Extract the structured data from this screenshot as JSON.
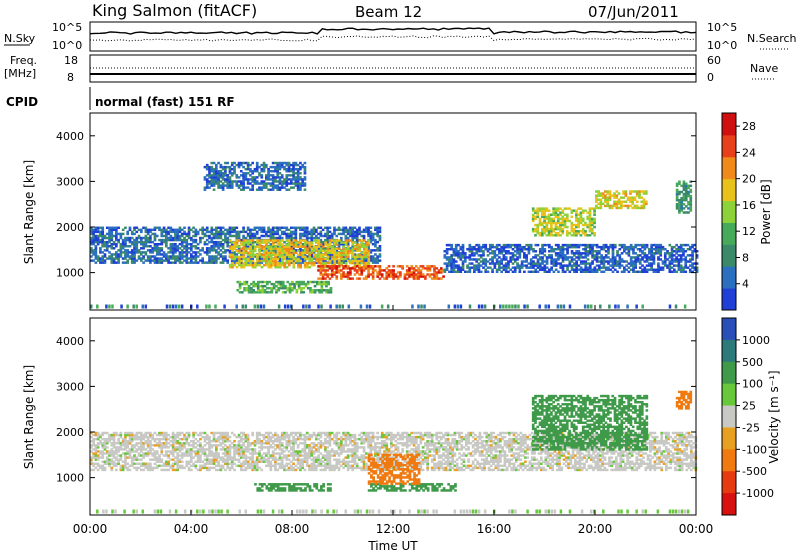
{
  "header": {
    "station": "King Salmon (fitACF)",
    "beam": "Beam 12",
    "date": "07/Jun/2011"
  },
  "strip_panels": {
    "nsky_label": "N.Sky",
    "nsky_ticks": [
      "10^5",
      "10^0"
    ],
    "nsearch_label": "N.Search",
    "nsearch_ticks": [
      "10^5",
      "10^0"
    ],
    "freq_label": "Freq.",
    "freq_unit": "[MHz]",
    "freq_ticks": [
      "18",
      "8"
    ],
    "nave_label": "Nave",
    "nave_ticks": [
      "60",
      "0"
    ],
    "cpid_label": "CPID",
    "cpid_value": "normal (fast) 151 RF"
  },
  "x_axis": {
    "label": "Time UT",
    "ticks": [
      "00:00",
      "04:00",
      "08:00",
      "12:00",
      "16:00",
      "20:00",
      "00:00"
    ]
  },
  "colors": {
    "power": [
      "#1f3fd6",
      "#2b6fc0",
      "#3a8a6a",
      "#47a95a",
      "#8ed23a",
      "#e8c21a",
      "#f08a1a",
      "#e8401a",
      "#d01010"
    ],
    "velocity": [
      "#2a4fb8",
      "#2d7a7a",
      "#3f9a4a",
      "#66c83a",
      "#c8c8c4",
      "#e8a020",
      "#f07a10",
      "#e63a10",
      "#d81010"
    ]
  },
  "chart_data": [
    {
      "type": "heatmap",
      "title": "",
      "xlabel": "Time UT",
      "ylabel": "Slant Range [km]",
      "xlim": [
        0,
        24
      ],
      "ylim": [
        180,
        4500
      ],
      "yticks": [
        "1000",
        "2000",
        "3000",
        "4000"
      ],
      "colorbar": {
        "label": "Power [dB]",
        "ticks": [
          "4",
          "8",
          "12",
          "16",
          "20",
          "24",
          "28"
        ],
        "range": [
          0,
          30
        ]
      },
      "features": [
        {
          "t0": 0.0,
          "t1": 11.5,
          "r0": 1200,
          "r1": 2000,
          "level": 5
        },
        {
          "t0": 5.5,
          "t1": 11.0,
          "r0": 1100,
          "r1": 1700,
          "level": 18
        },
        {
          "t0": 9.0,
          "t1": 14.0,
          "r0": 850,
          "r1": 1150,
          "level": 24
        },
        {
          "t0": 5.8,
          "t1": 9.5,
          "r0": 550,
          "r1": 800,
          "level": 12
        },
        {
          "t0": 4.5,
          "t1": 8.5,
          "r0": 2800,
          "r1": 3400,
          "level": 5
        },
        {
          "t0": 17.5,
          "t1": 20.0,
          "r0": 1800,
          "r1": 2400,
          "level": 16
        },
        {
          "t0": 20.0,
          "t1": 22.0,
          "r0": 2400,
          "r1": 2800,
          "level": 18
        },
        {
          "t0": 14.0,
          "t1": 24.0,
          "r0": 1000,
          "r1": 1600,
          "level": 4
        },
        {
          "t0": 23.2,
          "t1": 23.8,
          "r0": 2300,
          "r1": 3000,
          "level": 10
        }
      ]
    },
    {
      "type": "heatmap",
      "title": "",
      "xlabel": "Time UT",
      "ylabel": "Slant Range [km]",
      "xlim": [
        0,
        24
      ],
      "ylim": [
        180,
        4500
      ],
      "yticks": [
        "1000",
        "2000",
        "3000",
        "4000"
      ],
      "colorbar": {
        "label": "Velocity [m s⁻¹]",
        "ticks": [
          "1000",
          "500",
          "100",
          "25",
          "-25",
          "-100",
          "-500",
          "-1000"
        ],
        "range": [
          -1200,
          1200
        ]
      },
      "features": [
        {
          "t0": 0.0,
          "t1": 24.0,
          "r0": 1150,
          "r1": 2000,
          "velocity": 0
        },
        {
          "t0": 6.5,
          "t1": 9.5,
          "r0": 700,
          "r1": 850,
          "velocity": 150
        },
        {
          "t0": 11.0,
          "t1": 14.5,
          "r0": 700,
          "r1": 850,
          "velocity": 150
        },
        {
          "t0": 11.0,
          "t1": 13.0,
          "r0": 850,
          "r1": 1500,
          "velocity": -300
        },
        {
          "t0": 17.5,
          "t1": 22.0,
          "r0": 1600,
          "r1": 2800,
          "velocity": 400
        },
        {
          "t0": 23.2,
          "t1": 23.8,
          "r0": 2500,
          "r1": 2900,
          "velocity": -400
        }
      ]
    }
  ]
}
